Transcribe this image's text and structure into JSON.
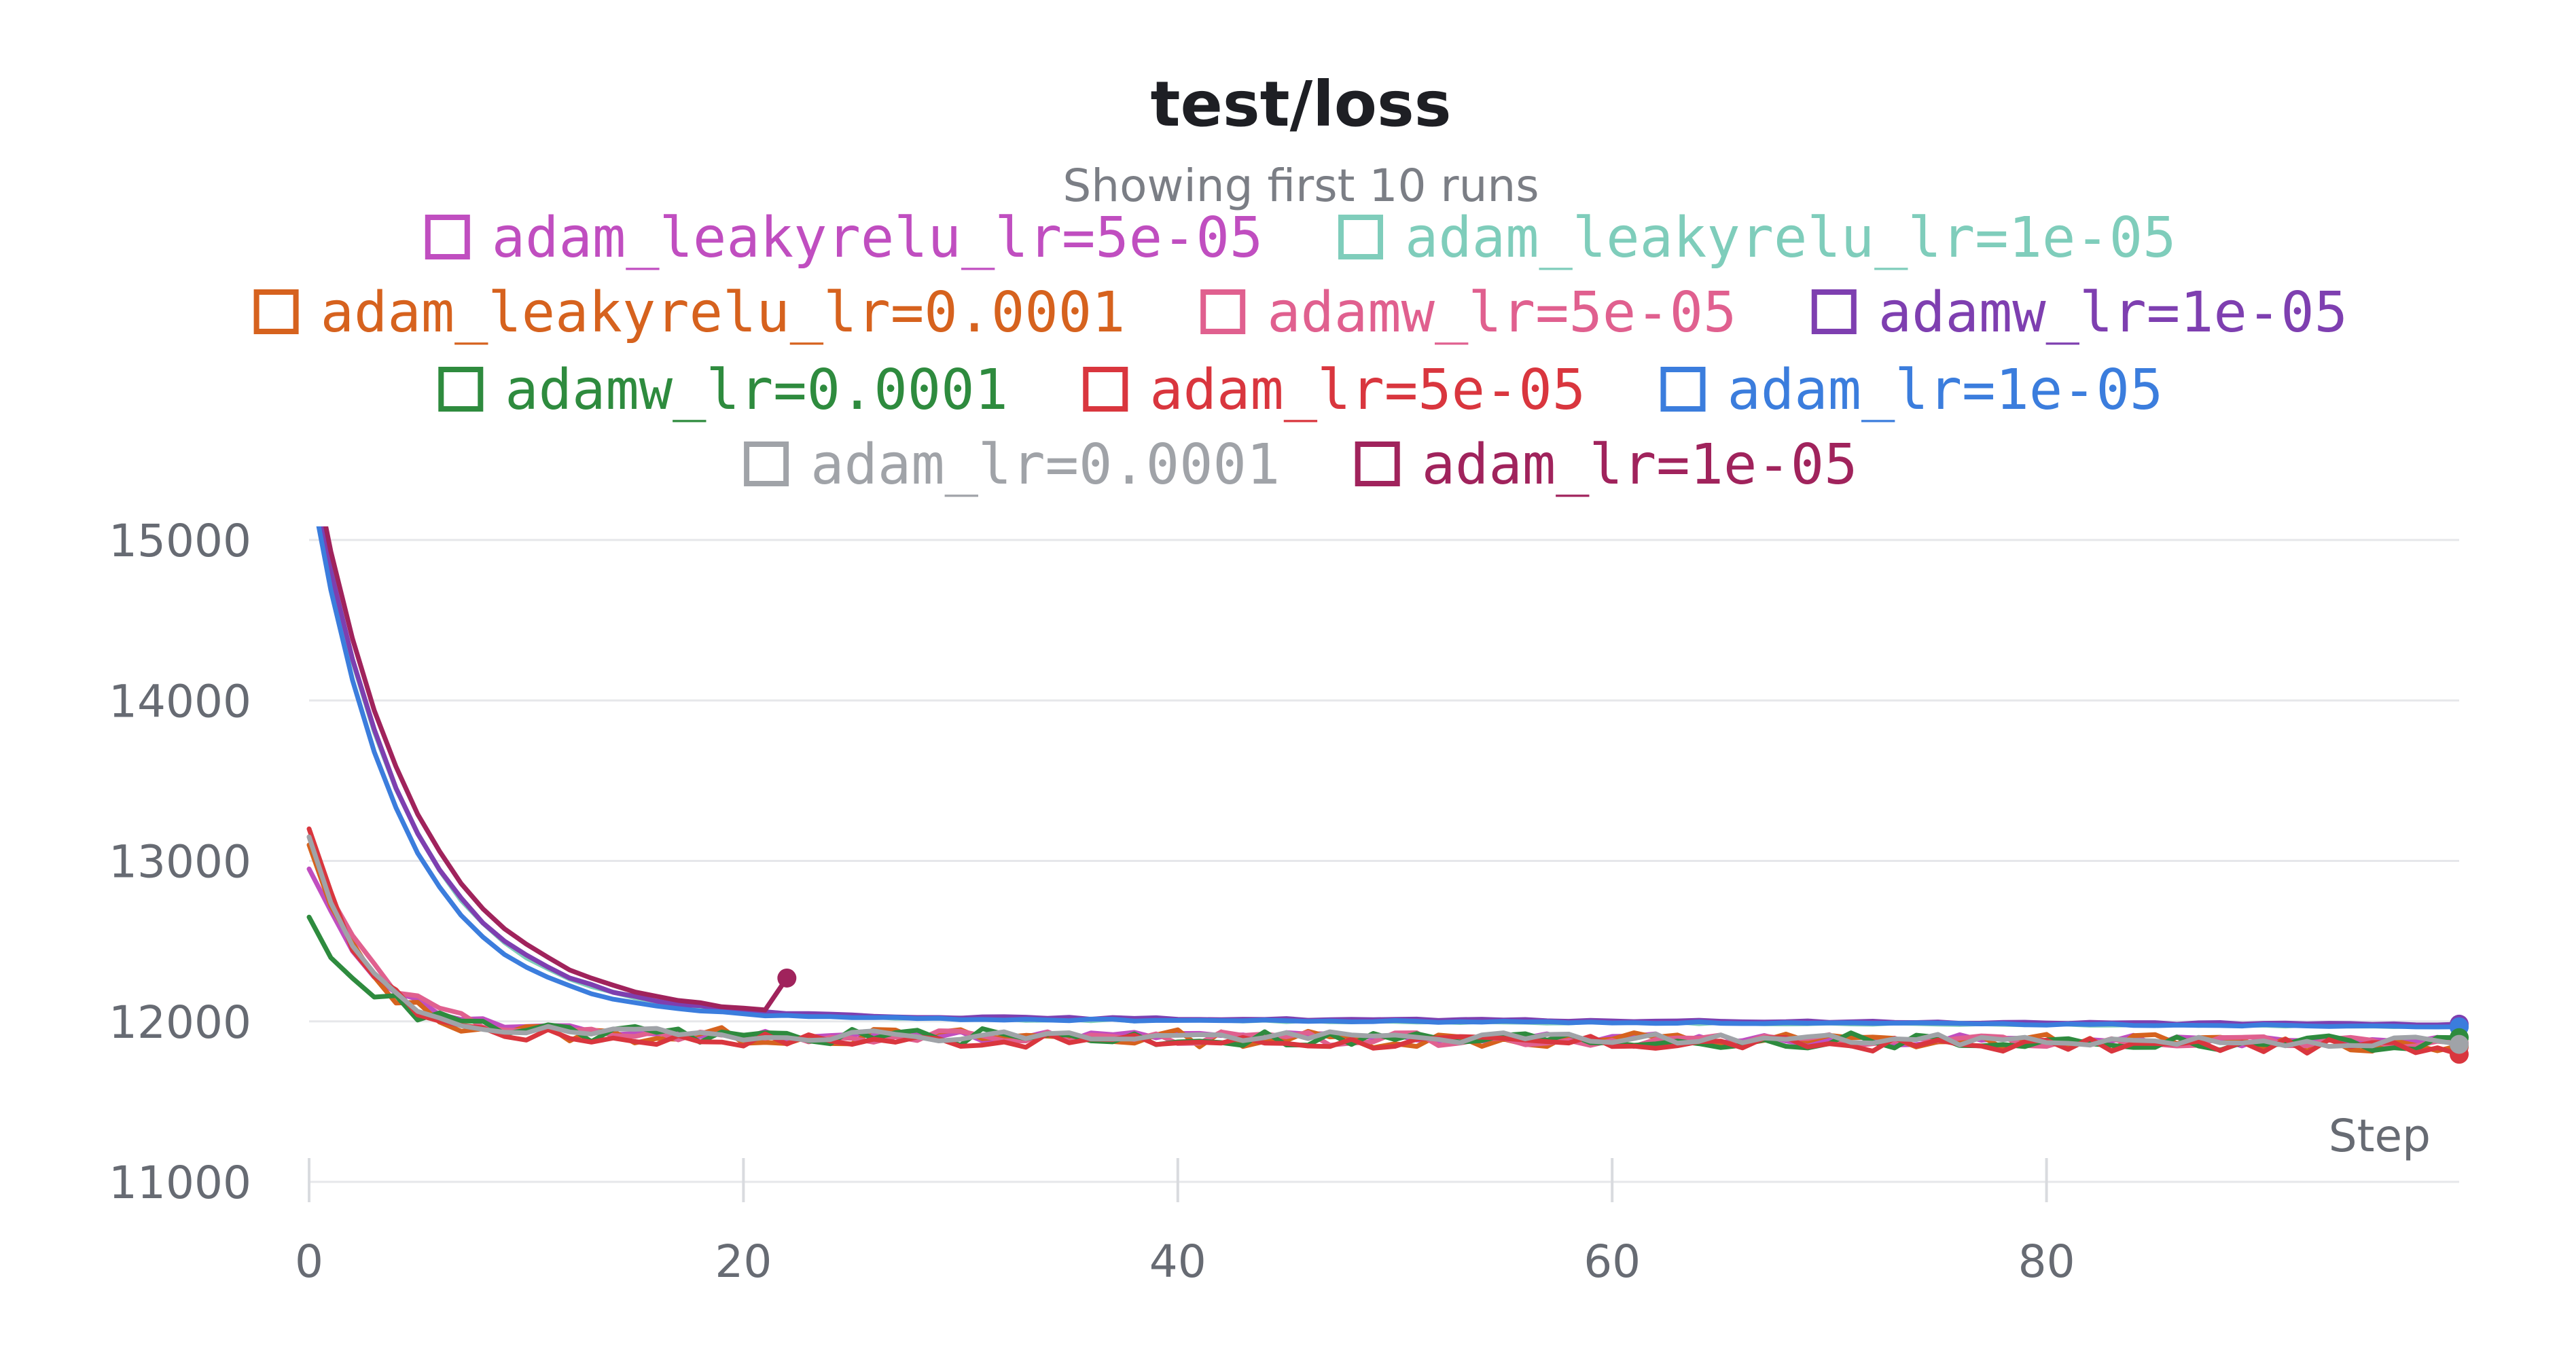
{
  "chart_data": {
    "type": "line",
    "title": "test/loss",
    "subtitle": "Showing first 10 runs",
    "xlabel": "Step",
    "ylabel": "",
    "xlim": [
      0,
      99
    ],
    "ylim": [
      11000,
      15000
    ],
    "x_ticks": [
      0,
      20,
      40,
      60,
      80
    ],
    "y_ticks": [
      11000,
      12000,
      13000,
      14000,
      15000
    ],
    "grid": true,
    "legend_position": "top",
    "series": [
      {
        "name": "adam_leakyrelu_lr=5e-05",
        "color": "#c04ec0",
        "start": 12950,
        "end": 11930,
        "tau": 3.0,
        "noise": 35,
        "seed": 11
      },
      {
        "name": "adam_leakyrelu_lr=1e-05",
        "color": "#7fcdbb",
        "start": 15500,
        "end": 12030,
        "tau": 4.5,
        "noise": 6,
        "seed": 12
      },
      {
        "name": "adam_leakyrelu_lr=0.0001",
        "color": "#d6621e",
        "start": 13100,
        "end": 11920,
        "tau": 2.5,
        "noise": 55,
        "seed": 13
      },
      {
        "name": "adamw_lr=5e-05",
        "color": "#e0608f",
        "start": 13150,
        "end": 11920,
        "tau": 2.8,
        "noise": 40,
        "seed": 14
      },
      {
        "name": "adamw_lr=1e-05",
        "color": "#7e3fb0",
        "start": 15500,
        "end": 12040,
        "tau": 4.5,
        "noise": 6,
        "seed": 15
      },
      {
        "name": "adamw_lr=0.0001",
        "color": "#2e8b3e",
        "start": 12650,
        "end": 11920,
        "tau": 3.0,
        "noise": 55,
        "seed": 16
      },
      {
        "name": "adam_lr=5e-05",
        "color": "#d9363e",
        "start": 13200,
        "end": 11900,
        "tau": 2.5,
        "noise": 45,
        "seed": 17
      },
      {
        "name": "adam_lr=1e-05",
        "color": "#3b7ddd",
        "start": 15400,
        "end": 12030,
        "tau": 4.2,
        "noise": 6,
        "seed": 18
      },
      {
        "name": "adam_lr=0.0001",
        "color": "#a0a3a8",
        "start": 13150,
        "end": 11930,
        "tau": 2.4,
        "noise": 35,
        "seed": 19
      },
      {
        "name": "adam_lr=1e-05",
        "color": "#a0235c",
        "start": 15600,
        "end": 12040,
        "tau": 4.8,
        "noise": 6,
        "seed": 20,
        "last_step": 22,
        "end_value": 12270
      }
    ]
  }
}
